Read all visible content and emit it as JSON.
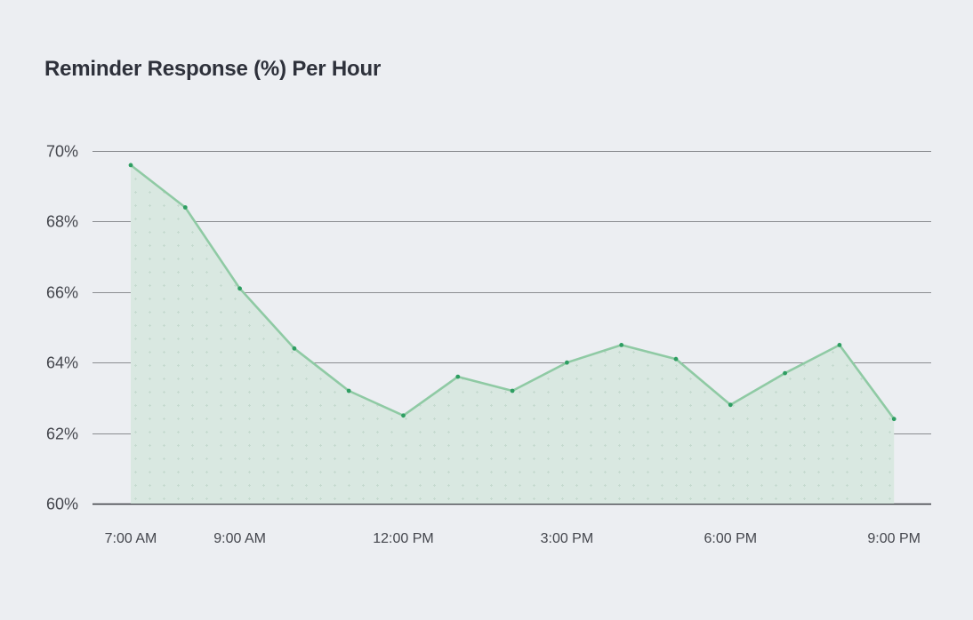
{
  "title": "Reminder Response (%) Per Hour",
  "colors": {
    "background": "#eceef2",
    "gridline": "#8a8c90",
    "baseline": "#3a3c42",
    "line": "#8fcaa4",
    "marker": "#2e9e62",
    "fill": "#d9e8e1",
    "fill_pattern": "#c3d9ce"
  },
  "chart_data": {
    "type": "area",
    "title": "Reminder Response (%) Per Hour",
    "xlabel": "",
    "ylabel": "",
    "ylim": [
      60,
      70
    ],
    "yticks": [
      "60%",
      "62%",
      "64%",
      "66%",
      "68%",
      "70%"
    ],
    "ytick_values": [
      60,
      62,
      64,
      66,
      68,
      70
    ],
    "xtick_labels": [
      "7:00 AM",
      "9:00 AM",
      "12:00 PM",
      "3:00 PM",
      "6:00 PM",
      "9:00 PM"
    ],
    "xtick_index": [
      0,
      2,
      5,
      8,
      11,
      14
    ],
    "grid": true,
    "legend": null,
    "x": [
      "7:00 AM",
      "8:00 AM",
      "9:00 AM",
      "10:00 AM",
      "11:00 AM",
      "12:00 PM",
      "1:00 PM",
      "2:00 PM",
      "3:00 PM",
      "4:00 PM",
      "5:00 PM",
      "6:00 PM",
      "7:00 PM",
      "8:00 PM",
      "9:00 PM"
    ],
    "series": [
      {
        "name": "Reminder Response (%)",
        "values": [
          69.6,
          68.4,
          66.1,
          64.4,
          63.2,
          62.5,
          63.6,
          63.2,
          64.0,
          64.5,
          64.1,
          62.8,
          63.7,
          64.5,
          62.4
        ]
      }
    ]
  }
}
